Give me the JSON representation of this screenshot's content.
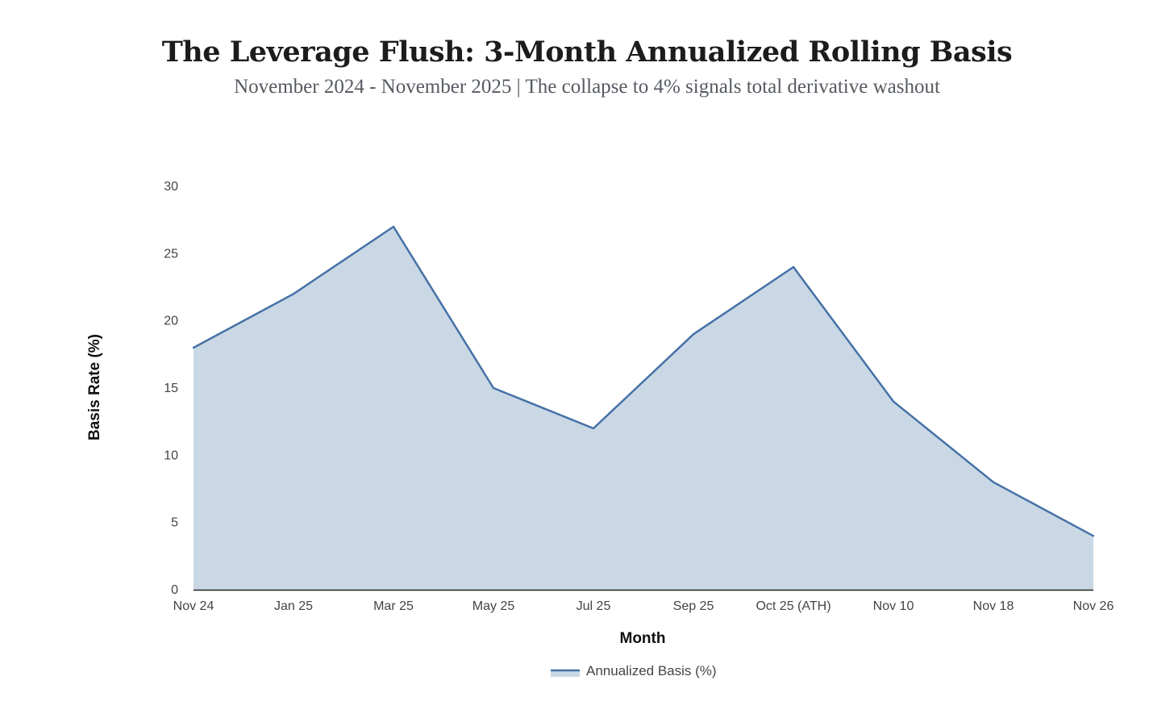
{
  "title": "The Leverage Flush: 3-Month Annualized Rolling Basis",
  "subtitle": "November 2024 - November 2025 | The collapse to 4% signals total derivative washout",
  "chart_data": {
    "type": "area",
    "title": "The Leverage Flush: 3-Month Annualized Rolling Basis",
    "subtitle": "November 2024 - November 2025 | The collapse to 4% signals total derivative washout",
    "xlabel": "Month",
    "ylabel": "Basis Rate (%)",
    "categories": [
      "Nov 24",
      "Jan 25",
      "Mar 25",
      "May 25",
      "Jul 25",
      "Sep 25",
      "Oct 25 (ATH)",
      "Nov 10",
      "Nov 18",
      "Nov 26"
    ],
    "series": [
      {
        "name": "Annualized Basis (%)",
        "values": [
          18,
          22,
          27,
          15,
          12,
          19,
          24,
          14,
          8,
          4
        ],
        "line_color": "#4571a6",
        "fill_color": "#cad8e5"
      }
    ],
    "ylim": [
      0,
      30
    ],
    "yticks": [
      0,
      5,
      10,
      15,
      20,
      25,
      30
    ],
    "grid": false,
    "legend": "bottom-center"
  }
}
